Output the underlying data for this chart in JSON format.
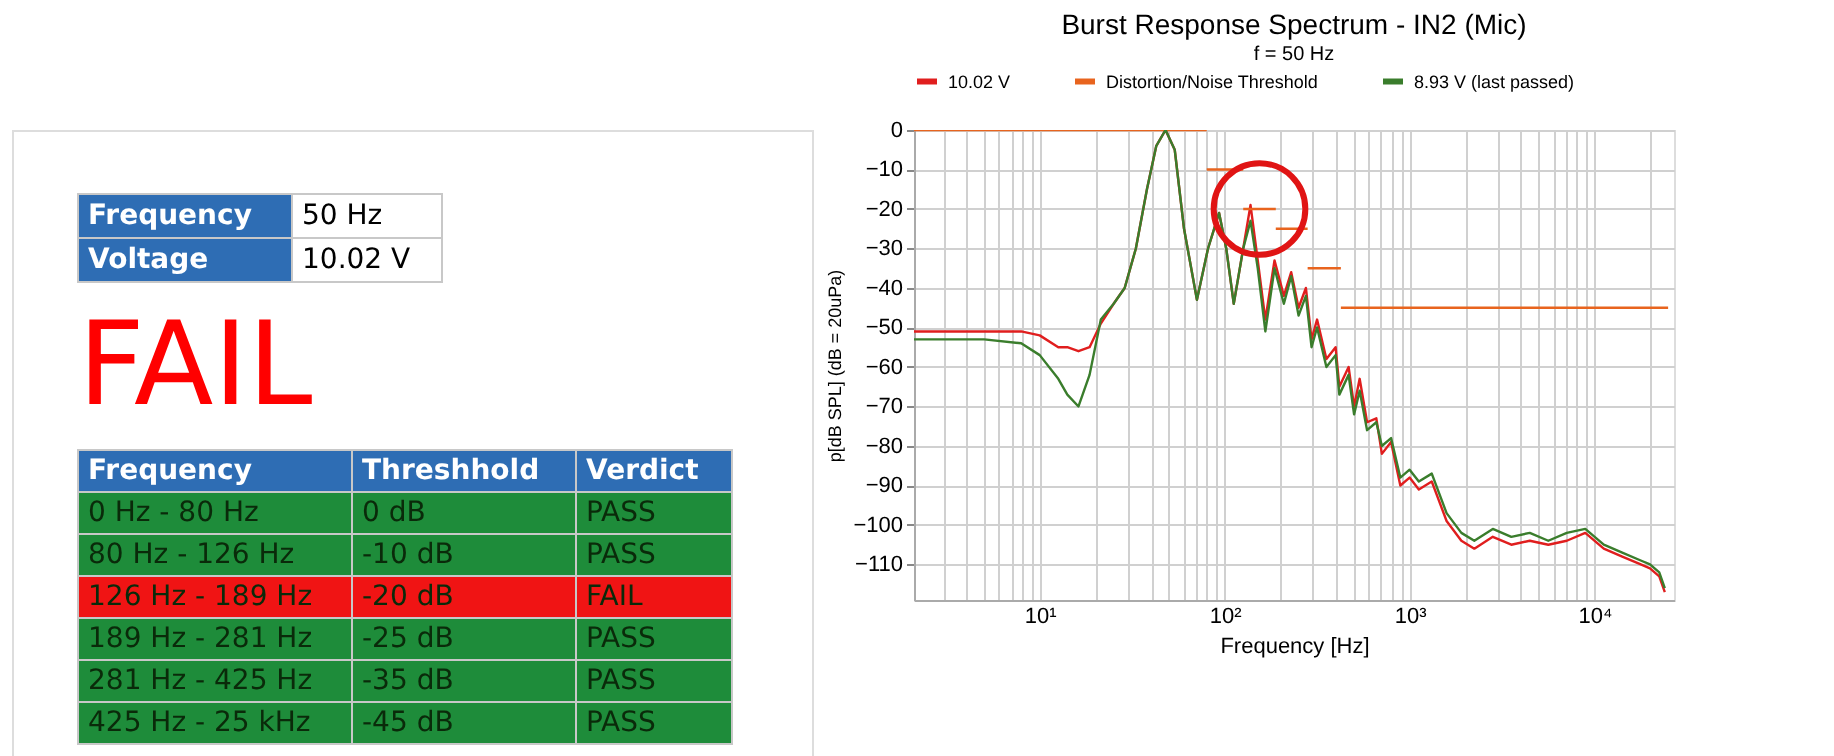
{
  "chart_data": [
    {
      "type": "other",
      "annotations": [
        "Frequency",
        "50 Hz",
        "Voltage",
        "10.02 V",
        "FAIL",
        "Frequency",
        "Threshhold",
        "Verdict",
        "0 Hz - 80 Hz",
        "0 dB",
        "PASS",
        "80 Hz - 126 Hz",
        "-10 dB",
        "PASS",
        "126 Hz - 189 Hz",
        "-20 dB",
        "FAIL",
        "189 Hz - 281 Hz",
        "-25 dB",
        "PASS",
        "281 Hz - 425 Hz",
        "-35 dB",
        "PASS",
        "425 Hz - 25 kHz",
        "-45 dB",
        "PASS"
      ],
      "colors": [
        "#1e8c3a",
        "#1e8c3a",
        "#f01414",
        "#1e8c3a",
        "#1e8c3a",
        "#1e8c3a"
      ]
    },
    {
      "type": "line",
      "title": "Burst Response Spectrum - IN2 (Mic)",
      "subtitle": "f = 50 Hz",
      "xlabel": "Frequency [Hz]",
      "ylabel": "p[dB SPL] (dB = 20uPa)",
      "log": "x",
      "grid": true,
      "legend": "top",
      "xlim": [
        2.09,
        26900
      ],
      "ylim": [
        -119,
        0
      ],
      "xticks": [
        {
          "value": 3,
          "label": null
        },
        {
          "value": 4,
          "label": null
        },
        {
          "value": 5,
          "label": null
        },
        {
          "value": 6,
          "label": null
        },
        {
          "value": 7,
          "label": null
        },
        {
          "value": 8,
          "label": null
        },
        {
          "value": 9,
          "label": null
        },
        {
          "value": 10,
          "label": "10¹"
        },
        {
          "value": 20,
          "label": null
        },
        {
          "value": 30,
          "label": null
        },
        {
          "value": 40,
          "label": null
        },
        {
          "value": 50,
          "label": null
        },
        {
          "value": 60,
          "label": null
        },
        {
          "value": 70,
          "label": null
        },
        {
          "value": 80,
          "label": null
        },
        {
          "value": 90,
          "label": null
        },
        {
          "value": 100,
          "label": "10²"
        },
        {
          "value": 200,
          "label": null
        },
        {
          "value": 300,
          "label": null
        },
        {
          "value": 400,
          "label": null
        },
        {
          "value": 500,
          "label": null
        },
        {
          "value": 600,
          "label": null
        },
        {
          "value": 700,
          "label": null
        },
        {
          "value": 800,
          "label": null
        },
        {
          "value": 900,
          "label": null
        },
        {
          "value": 1000,
          "label": "10³"
        },
        {
          "value": 2000,
          "label": null
        },
        {
          "value": 3000,
          "label": null
        },
        {
          "value": 4000,
          "label": null
        },
        {
          "value": 5000,
          "label": null
        },
        {
          "value": 6000,
          "label": null
        },
        {
          "value": 7000,
          "label": null
        },
        {
          "value": 8000,
          "label": null
        },
        {
          "value": 9000,
          "label": null
        },
        {
          "value": 10000,
          "label": "10⁴"
        },
        {
          "value": 20000,
          "label": null
        }
      ],
      "yticks": [
        0,
        -10,
        -20,
        -30,
        -40,
        -50,
        -60,
        -70,
        -80,
        -90,
        -100,
        -110
      ],
      "x": [
        2.09,
        3.16,
        5.01,
        7.94,
        10,
        12.6,
        14.1,
        16.2,
        18.6,
        21.4,
        25.1,
        28.8,
        33.1,
        38.0,
        42.7,
        47.9,
        53.7,
        60.3,
        70.8,
        81.3,
        93.3,
        102,
        112,
        126,
        138,
        151,
        166,
        186,
        209,
        229,
        251,
        275,
        295,
        316,
        355,
        398,
        417,
        468,
        501,
        537,
        589,
        661,
        708,
        794,
        891,
        1000,
        1122,
        1318,
        1585,
        1905,
        2239,
        2818,
        3548,
        4467,
        5623,
        7079,
        8913,
        11220,
        14125,
        17783,
        19953,
        22387,
        23988
      ],
      "series": [
        {
          "name": "10.02 V",
          "color": "#e01e1e",
          "values": [
            -51,
            -51,
            -51,
            -51,
            -52,
            -55,
            -55,
            -56,
            -55,
            -49,
            -44,
            -40,
            -30,
            -15,
            -4,
            0,
            -5,
            -25,
            -43,
            -30,
            -21,
            -30,
            -44,
            -30,
            -19,
            -33,
            -48,
            -33,
            -42,
            -36,
            -45,
            -40,
            -53,
            -48,
            -58,
            -55,
            -65,
            -60,
            -70,
            -63,
            -74,
            -73,
            -82,
            -79,
            -90,
            -88,
            -91,
            -89,
            -99,
            -104,
            -106,
            -103,
            -105,
            -104,
            -105,
            -104,
            -102,
            -106,
            -108,
            -110,
            -111,
            -113,
            -117
          ]
        },
        {
          "name": "Distortion/Noise Threshold",
          "color": "#e8641e",
          "x": [
            2.09,
            80,
            null,
            80,
            126,
            null,
            126,
            189,
            null,
            189,
            281,
            null,
            281,
            425,
            null,
            425,
            25000
          ],
          "values": [
            0,
            0,
            null,
            -10,
            -10,
            null,
            -20,
            -20,
            null,
            -25,
            -25,
            null,
            -35,
            -35,
            null,
            -45,
            -45
          ]
        },
        {
          "name": "8.93 V (last passed)",
          "color": "#3a7d2c",
          "values": [
            -53,
            -53,
            -53,
            -54,
            -57,
            -63,
            -67,
            -70,
            -62,
            -48,
            -44,
            -40,
            -30,
            -15,
            -4,
            0,
            -5,
            -25,
            -43,
            -30,
            -21,
            -30,
            -44,
            -30,
            -23,
            -35,
            -51,
            -35,
            -44,
            -37,
            -47,
            -42,
            -55,
            -50,
            -60,
            -57,
            -67,
            -62,
            -72,
            -66,
            -76,
            -74,
            -80,
            -78,
            -88,
            -86,
            -89,
            -87,
            -97,
            -102,
            -104,
            -101,
            -103,
            -102,
            -104,
            -102,
            -101,
            -105,
            -107,
            -109,
            -110,
            -112,
            -116
          ]
        }
      ]
    }
  ]
}
